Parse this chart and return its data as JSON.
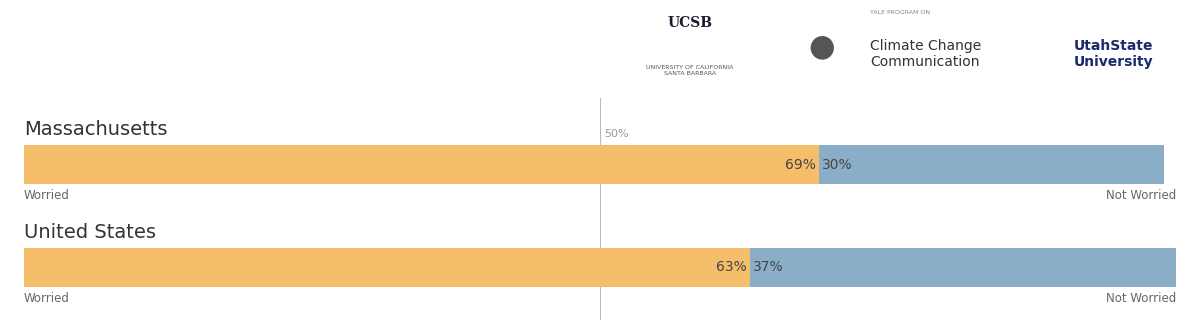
{
  "rows": [
    {
      "label": "Massachusetts",
      "worried_pct": 69,
      "not_worried_pct": 30,
      "worried_label": "69%",
      "not_worried_label": "30%"
    },
    {
      "label": "United States",
      "worried_pct": 63,
      "not_worried_pct": 37,
      "worried_label": "63%",
      "not_worried_label": "37%"
    }
  ],
  "color_worried": "#F5BE6A",
  "color_not_worried": "#8AAEC8",
  "midpoint_label": "50%",
  "left_axis_label": "Worried",
  "right_axis_label": "Not Worried",
  "background_color": "#ffffff",
  "bar_label_fontsize": 10,
  "axis_label_fontsize": 8.5,
  "midpoint_label_fontsize": 8,
  "row_label_fontsize": 14,
  "ucsb_line1": "UCSB",
  "ucsb_line2": "UNIVERSITY OF CALIFORNIA\nSANTA BARBARA",
  "yale_line1": "YALE PROGRAM ON",
  "yale_line2": "Climate Change\nCommunication",
  "utah_line1": "UtahState\nUniversity"
}
